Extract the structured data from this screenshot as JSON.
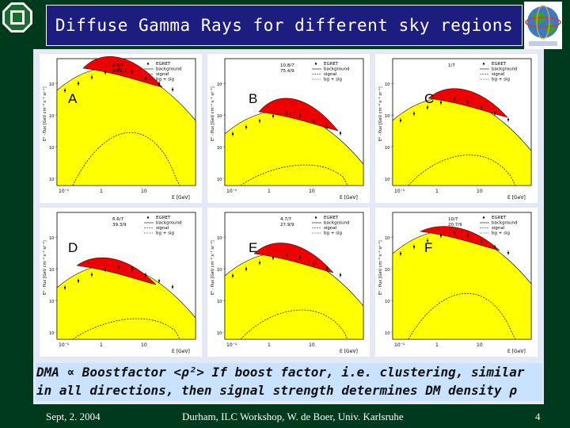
{
  "slide": {
    "title": "Diffuse Gamma Rays for different sky regions",
    "caption_line1": "DMA ∝ Boostfactor <ρ²> If boost factor, i.e. clustering, similar",
    "caption_line2": "in all directions, then signal strength determines DM density ρ",
    "footer_date": "Sept, 2. 2004",
    "footer_center": "Durham, ILC Workshop, W. de Boer,  Univ. Karlsruhe",
    "page_number": "4",
    "colors": {
      "background": "#003a1d",
      "title_bar": "#1d1d80",
      "caption_box": "#c9e3ff",
      "plot_fill": "#ffff00",
      "signal_fill": "#ee0000"
    }
  },
  "panels": [
    {
      "letter": "A",
      "legend": [
        "EGRET",
        "background",
        "signal",
        "bg + sig"
      ],
      "chi2_fit": "6.6/7",
      "chi2_bg": "90.3/3",
      "xlabel": "E [GeV]",
      "ticks": [
        "10⁻¹",
        "1",
        "10"
      ]
    },
    {
      "letter": "B",
      "legend": [
        "EGRET",
        "background",
        "signal",
        "bg + sig"
      ],
      "chi2_fit": "10.8/7",
      "chi2_bg": "75.4/9",
      "xlabel": "E [GeV]",
      "ticks": [
        "10⁻¹",
        "1",
        "10"
      ]
    },
    {
      "letter": "C",
      "legend": [
        "EGRET",
        "background",
        "signal",
        "bg + sig"
      ],
      "chi2_fit": "1/7",
      "chi2_bg": "",
      "xlabel": "E [GeV]",
      "ticks": [
        "10⁻¹",
        "1",
        "10"
      ]
    },
    {
      "letter": "D",
      "legend": [
        "EGRET",
        "background",
        "signal",
        "bg + sig"
      ],
      "chi2_fit": "6.6/7",
      "chi2_bg": "39.3/9",
      "xlabel": "E [GeV]",
      "ticks": [
        "10⁻¹",
        "1",
        "10"
      ]
    },
    {
      "letter": "E",
      "legend": [
        "EGRET",
        "background",
        "signal",
        "bg + sig"
      ],
      "chi2_fit": "4.7/7",
      "chi2_bg": "27.9/9",
      "xlabel": "E [GeV]",
      "ticks": [
        "10⁻¹",
        "1",
        "10"
      ]
    },
    {
      "letter": "F",
      "legend": [
        "EGRET",
        "background",
        "signal",
        "bg + sig"
      ],
      "chi2_fit": "10/7",
      "chi2_bg": "20.7/9",
      "xlabel": "E [GeV]",
      "ticks": [
        "10⁻¹",
        "1",
        "10"
      ]
    }
  ]
}
